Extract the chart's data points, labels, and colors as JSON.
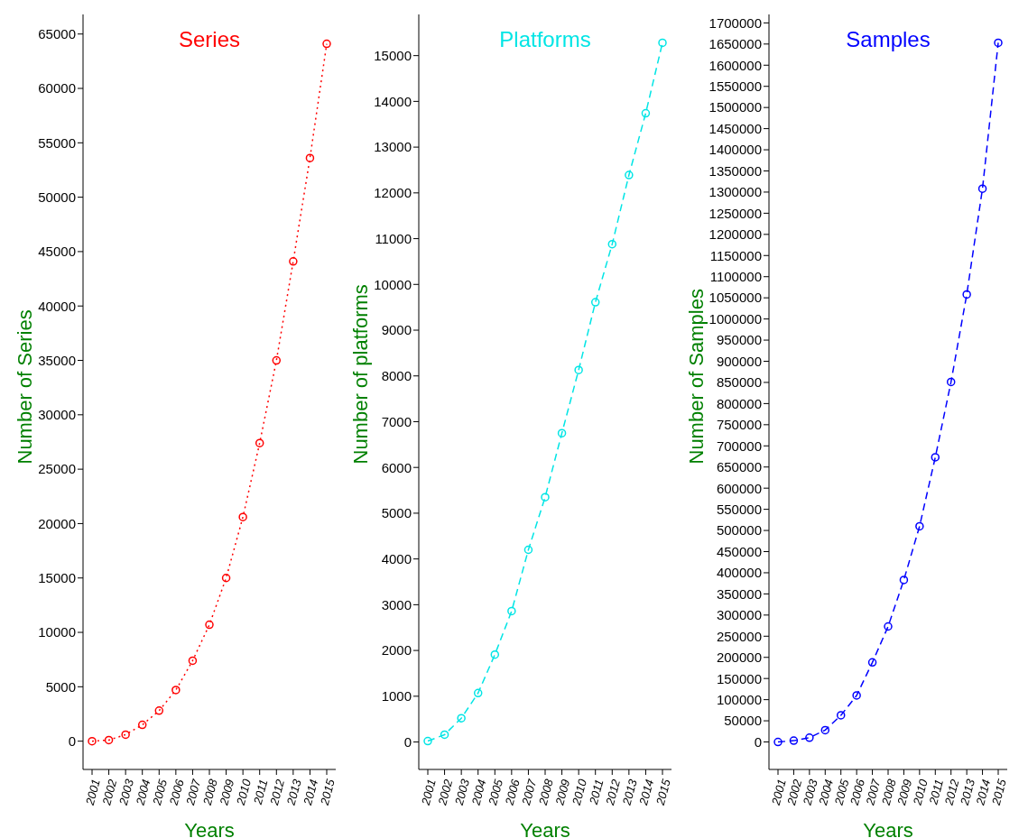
{
  "chart_data": [
    {
      "type": "line",
      "title": "Series",
      "xlabel": "Years",
      "ylabel": "Number of Series",
      "categories": [
        "2001",
        "2002",
        "2003",
        "2004",
        "2005",
        "2006",
        "2007",
        "2008",
        "2009",
        "2010",
        "2011",
        "2012",
        "2013",
        "2014",
        "2015"
      ],
      "series": [
        {
          "color": "#ff0000",
          "values": [
            0,
            100,
            600,
            1500,
            2800,
            4700,
            7400,
            10700,
            15000,
            20600,
            27400,
            35000,
            44100,
            53600,
            64100
          ]
        }
      ],
      "ylim": [
        -2600,
        66800
      ],
      "yticks": [
        0,
        5000,
        10000,
        15000,
        20000,
        25000,
        30000,
        35000,
        40000,
        45000,
        50000,
        55000,
        60000,
        65000
      ],
      "marker": "circle",
      "line_style": "dotted",
      "grid": false,
      "legend": false
    },
    {
      "type": "line",
      "title": "Platforms",
      "xlabel": "Years",
      "ylabel": "Number of platforms",
      "categories": [
        "2001",
        "2002",
        "2003",
        "2004",
        "2005",
        "2006",
        "2007",
        "2008",
        "2009",
        "2010",
        "2011",
        "2012",
        "2013",
        "2014",
        "2015"
      ],
      "series": [
        {
          "color": "#00e5e5",
          "values": [
            20,
            160,
            520,
            1070,
            1910,
            2860,
            4200,
            5350,
            6750,
            8130,
            9610,
            10880,
            12390,
            13740,
            15280
          ]
        }
      ],
      "ylim": [
        -600,
        15900
      ],
      "yticks": [
        0,
        1000,
        2000,
        3000,
        4000,
        5000,
        6000,
        7000,
        8000,
        9000,
        10000,
        11000,
        12000,
        13000,
        14000,
        15000
      ],
      "marker": "circle",
      "line_style": "dashed",
      "grid": false,
      "legend": false
    },
    {
      "type": "line",
      "title": "Samples",
      "xlabel": "Years",
      "ylabel": "Number of Samples",
      "categories": [
        "2001",
        "2002",
        "2003",
        "2004",
        "2005",
        "2006",
        "2007",
        "2008",
        "2009",
        "2010",
        "2011",
        "2012",
        "2013",
        "2014",
        "2015"
      ],
      "series": [
        {
          "color": "#0000ff",
          "values": [
            0,
            3000,
            10000,
            28000,
            63000,
            110000,
            188000,
            273000,
            383000,
            510000,
            673000,
            851000,
            1058000,
            1308000,
            1653000
          ]
        }
      ],
      "ylim": [
        -65000,
        1720000
      ],
      "yticks": [
        0,
        50000,
        100000,
        150000,
        200000,
        250000,
        300000,
        350000,
        400000,
        450000,
        500000,
        550000,
        600000,
        650000,
        700000,
        750000,
        800000,
        850000,
        900000,
        950000,
        1000000,
        1050000,
        1100000,
        1150000,
        1200000,
        1250000,
        1300000,
        1350000,
        1400000,
        1450000,
        1500000,
        1550000,
        1600000,
        1650000,
        1700000
      ],
      "marker": "circle",
      "line_style": "dashed",
      "grid": false,
      "legend": false
    }
  ]
}
